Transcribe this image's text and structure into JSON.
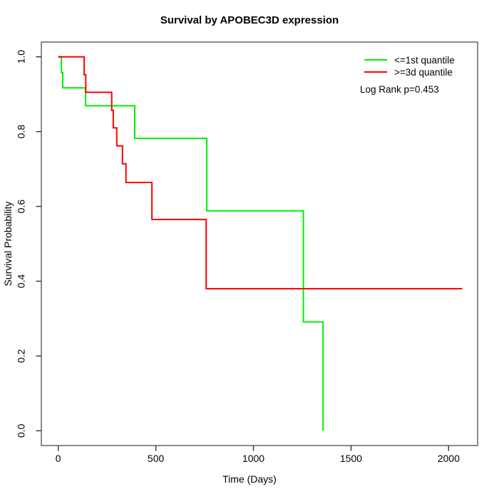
{
  "title": "Survival by APOBEC3D expression",
  "axes": {
    "x_label": "Time (Days)",
    "y_label": "Survival Probability",
    "x_ticks": [
      0,
      500,
      1000,
      1500,
      2000
    ],
    "y_ticks": [
      "1.0",
      "0.8",
      "0.6",
      "0.4",
      "0.2",
      "0.0"
    ]
  },
  "legend": {
    "items": [
      {
        "label": "<=1st quantile",
        "color": "#00ee00"
      },
      {
        "label": ">=3d quantile",
        "color": "#ff0000"
      }
    ],
    "note": "Log Rank p=0.453"
  },
  "colors": {
    "green_curve": "#00ee00",
    "red_curve": "#ff0000",
    "overlap_start": "#b22200"
  },
  "chart_data": {
    "type": "line",
    "subtype": "kaplan-meier-step",
    "title": "Survival by APOBEC3D expression",
    "xlabel": "Time (Days)",
    "ylabel": "Survival Probability",
    "xlim": [
      0,
      2100
    ],
    "ylim": [
      0.0,
      1.0
    ],
    "grid": false,
    "legend_position": "top-right-inside",
    "annotation": "Log Rank p=0.453",
    "series": [
      {
        "name": "<=1st quantile",
        "color": "#00ee00",
        "points": [
          [
            0,
            1.0
          ],
          [
            16,
            1.0
          ],
          [
            16,
            0.958
          ],
          [
            23,
            0.958
          ],
          [
            23,
            0.917
          ],
          [
            140,
            0.917
          ],
          [
            140,
            0.869
          ],
          [
            392,
            0.869
          ],
          [
            392,
            0.782
          ],
          [
            761,
            0.782
          ],
          [
            761,
            0.588
          ],
          [
            1256,
            0.588
          ],
          [
            1256,
            0.291
          ],
          [
            1357,
            0.291
          ],
          [
            1357,
            0.0
          ]
        ]
      },
      {
        "name": ">=3d quantile",
        "color": "#ff0000",
        "points": [
          [
            0,
            1.0
          ],
          [
            133,
            1.0
          ],
          [
            133,
            0.952
          ],
          [
            141,
            0.952
          ],
          [
            141,
            0.905
          ],
          [
            274,
            0.905
          ],
          [
            274,
            0.857
          ],
          [
            282,
            0.857
          ],
          [
            282,
            0.81
          ],
          [
            300,
            0.81
          ],
          [
            300,
            0.762
          ],
          [
            329,
            0.762
          ],
          [
            329,
            0.714
          ],
          [
            347,
            0.714
          ],
          [
            347,
            0.664
          ],
          [
            480,
            0.664
          ],
          [
            480,
            0.565
          ],
          [
            758,
            0.565
          ],
          [
            758,
            0.38
          ],
          [
            2070,
            0.38
          ]
        ]
      }
    ]
  }
}
